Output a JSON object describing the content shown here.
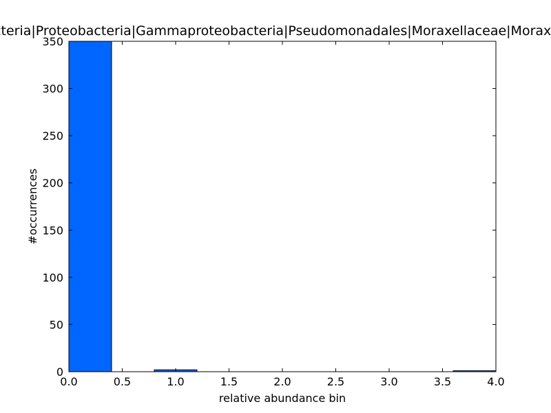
{
  "chart_data": {
    "type": "bar",
    "title": "Bacteria|Proteobacteria|Gammaproteobacteria|Pseudomonadales|Moraxellaceae|Moraxella",
    "xlabel": "relative abundance bin",
    "ylabel": "#occurrences",
    "xlim": [
      0.0,
      4.0
    ],
    "ylim": [
      0,
      350
    ],
    "xticks": [
      "0.0",
      "0.5",
      "1.0",
      "1.5",
      "2.0",
      "2.5",
      "3.0",
      "3.5",
      "4.0"
    ],
    "yticks": [
      "0",
      "50",
      "100",
      "150",
      "200",
      "250",
      "300",
      "350"
    ],
    "bin_edges": [
      0.0,
      0.4,
      0.8,
      1.2,
      1.6,
      2.0,
      2.4,
      2.8,
      3.2,
      3.6,
      4.0
    ],
    "counts": [
      350,
      0,
      2,
      0,
      0,
      0,
      0,
      0,
      0,
      1
    ],
    "bar_color": "#0066ff",
    "grid": false,
    "legend": "none"
  }
}
